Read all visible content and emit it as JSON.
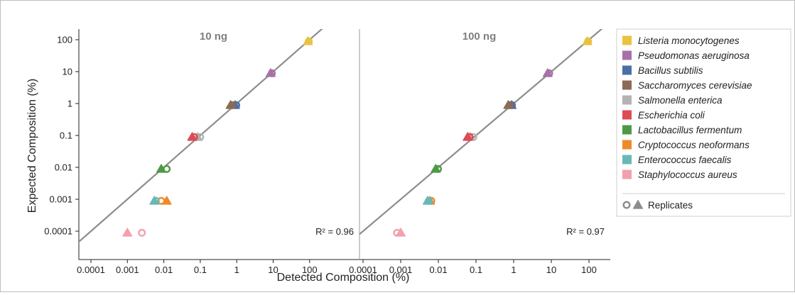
{
  "chart_data": {
    "type": "scatter",
    "xlabel": "Detected Composition (%)",
    "ylabel": "Expected Composition (%)",
    "xscale": "log",
    "yscale": "log",
    "xlim": [
      0.0001,
      200
    ],
    "ylim": [
      5e-05,
      200
    ],
    "x_tick_labels": [
      "0.0001",
      "0.001",
      "0.01",
      "0.1",
      "1",
      "10",
      "100"
    ],
    "y_tick_labels": [
      "0.0001",
      "0.001",
      "0.01",
      "0.1",
      "1",
      "10",
      "100"
    ],
    "x_ticks": [
      0.0001,
      0.001,
      0.01,
      0.1,
      1,
      10,
      100
    ],
    "y_ticks": [
      0.0001,
      0.001,
      0.01,
      0.1,
      1,
      10,
      100
    ],
    "reference_line": "y = x",
    "species": [
      {
        "name": "Listeria monocytogenes",
        "color": "#e8c340"
      },
      {
        "name": "Pseudomonas aeruginosa",
        "color": "#a870a8"
      },
      {
        "name": "Bacillus subtilis",
        "color": "#4a6fa5"
      },
      {
        "name": "Saccharomyces cerevisiae",
        "color": "#8c6a55"
      },
      {
        "name": "Salmonella enterica",
        "color": "#b3b3b3"
      },
      {
        "name": "Escherichia coli",
        "color": "#dd4b55"
      },
      {
        "name": "Lactobacillus fermentum",
        "color": "#4c9a44"
      },
      {
        "name": "Cryptococcus neoformans",
        "color": "#ee8a2a"
      },
      {
        "name": "Enterococcus faecalis",
        "color": "#69b8b5"
      },
      {
        "name": "Staphylococcus aureus",
        "color": "#f2a0ad"
      }
    ],
    "panels": [
      {
        "title": "10 ng",
        "r2": "R² = 0.96",
        "points": [
          {
            "species": 0,
            "expected": 89,
            "tri": 90,
            "circ": 95
          },
          {
            "species": 1,
            "expected": 8.9,
            "tri": 8.5,
            "circ": 9.2
          },
          {
            "species": 2,
            "expected": 0.89,
            "tri": 0.9,
            "circ": 0.97
          },
          {
            "species": 3,
            "expected": 0.89,
            "tri": 0.68,
            "circ": 0.75
          },
          {
            "species": 4,
            "expected": 0.089,
            "tri": 0.085,
            "circ": 0.1
          },
          {
            "species": 5,
            "expected": 0.089,
            "tri": 0.06,
            "circ": 0.068
          },
          {
            "species": 6,
            "expected": 0.0089,
            "tri": 0.0085,
            "circ": 0.012
          },
          {
            "species": 7,
            "expected": 0.00089,
            "tri": 0.012,
            "circ": 0.0085
          },
          {
            "species": 8,
            "expected": 0.00089,
            "tri": 0.0055,
            "circ": 0.006
          },
          {
            "species": 9,
            "expected": 8.9e-05,
            "tri": 0.001,
            "circ": 0.0025
          }
        ]
      },
      {
        "title": "100 ng",
        "r2": "R² = 0.97",
        "points": [
          {
            "species": 0,
            "expected": 89,
            "tri": 90,
            "circ": 95
          },
          {
            "species": 1,
            "expected": 8.9,
            "tri": 8.0,
            "circ": 8.8
          },
          {
            "species": 2,
            "expected": 0.89,
            "tri": 0.88,
            "circ": 0.9
          },
          {
            "species": 3,
            "expected": 0.89,
            "tri": 0.72,
            "circ": 0.8
          },
          {
            "species": 4,
            "expected": 0.089,
            "tri": 0.07,
            "circ": 0.085
          },
          {
            "species": 5,
            "expected": 0.089,
            "tri": 0.06,
            "circ": 0.068
          },
          {
            "species": 6,
            "expected": 0.0089,
            "tri": 0.0085,
            "circ": 0.0098
          },
          {
            "species": 7,
            "expected": 0.00089,
            "tri": 0.006,
            "circ": 0.0065
          },
          {
            "species": 8,
            "expected": 0.00089,
            "tri": 0.0052,
            "circ": 0.0056
          },
          {
            "species": 9,
            "expected": 8.9e-05,
            "tri": 0.001,
            "circ": 0.0008
          }
        ]
      }
    ],
    "legend_replicates_label": "Replicates"
  }
}
